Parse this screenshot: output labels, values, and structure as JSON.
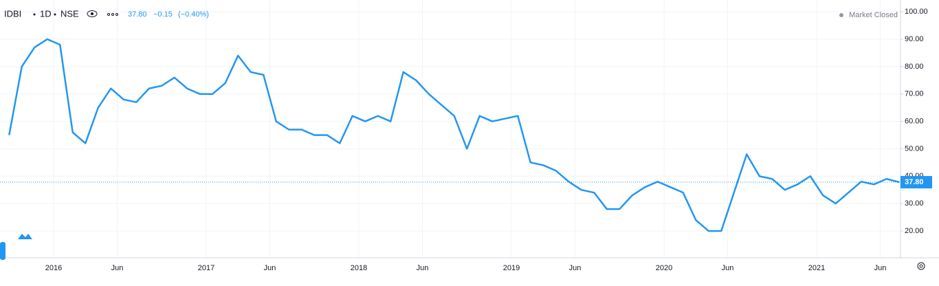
{
  "header": {
    "symbol": "IDBI",
    "interval": "1D",
    "exchange": "NSE",
    "change": "−0.15",
    "change_pct": "(−0.40%)",
    "status": "Market Closed"
  },
  "chart_data": {
    "type": "line",
    "x": [
      "2015-09",
      "2015-10",
      "2015-11",
      "2015-12",
      "2016-01",
      "2016-02",
      "2016-03",
      "2016-04",
      "2016-05",
      "2016-06",
      "2016-07",
      "2016-08",
      "2016-09",
      "2016-10",
      "2016-11",
      "2016-12",
      "2017-01",
      "2017-02",
      "2017-03",
      "2017-04",
      "2017-05",
      "2017-06",
      "2017-07",
      "2017-08",
      "2017-09",
      "2017-10",
      "2017-11",
      "2017-12",
      "2018-01",
      "2018-02",
      "2018-03",
      "2018-04",
      "2018-05",
      "2018-06",
      "2018-07",
      "2018-08",
      "2018-09",
      "2018-10",
      "2018-11",
      "2018-12",
      "2019-01",
      "2019-02",
      "2019-03",
      "2019-04",
      "2019-05",
      "2019-06",
      "2019-07",
      "2019-08",
      "2019-09",
      "2019-10",
      "2019-11",
      "2019-12",
      "2020-01",
      "2020-02",
      "2020-03",
      "2020-04",
      "2020-05",
      "2020-06",
      "2020-07",
      "2020-08",
      "2020-09",
      "2020-10",
      "2020-11",
      "2020-12",
      "2021-01",
      "2021-02",
      "2021-03",
      "2021-04",
      "2021-05",
      "2021-06",
      "2021-07"
    ],
    "series": [
      {
        "name": "IDBI",
        "color": "#2196f3",
        "values": [
          55,
          80,
          87,
          90,
          88,
          56,
          52,
          65,
          72,
          68,
          67,
          72,
          73,
          76,
          72,
          70,
          70,
          74,
          84,
          78,
          77,
          60,
          57,
          57,
          55,
          55,
          52,
          62,
          60,
          62,
          60,
          78,
          75,
          70,
          66,
          62,
          50,
          62,
          60,
          61,
          62,
          45,
          44,
          42,
          38,
          35,
          34,
          28,
          28,
          33,
          36,
          38,
          36,
          34,
          24,
          20,
          20,
          34,
          48,
          40,
          39,
          35,
          37,
          40,
          33,
          30,
          34,
          38,
          37,
          39,
          37.8
        ]
      }
    ],
    "last_price": {
      "value": 37.8,
      "label": "37.80"
    },
    "ylim": [
      10.2,
      102.3
    ],
    "yticks": [
      {
        "value": 20,
        "label": "20.00"
      },
      {
        "value": 30,
        "label": "30.00"
      },
      {
        "value": 40,
        "label": "40.00"
      },
      {
        "value": 50,
        "label": "50.00"
      },
      {
        "value": 60,
        "label": "60.00"
      },
      {
        "value": 70,
        "label": "70.00"
      },
      {
        "value": 80,
        "label": "80.00"
      },
      {
        "value": 90,
        "label": "90.00"
      },
      {
        "value": 100,
        "label": "100.00"
      }
    ],
    "xticks": [
      {
        "value": "2016-01",
        "label": "2016"
      },
      {
        "value": "2016-06",
        "label": "Jun"
      },
      {
        "value": "2017-01",
        "label": "2017"
      },
      {
        "value": "2017-06",
        "label": "Jun"
      },
      {
        "value": "2018-01",
        "label": "2018"
      },
      {
        "value": "2018-06",
        "label": "Jun"
      },
      {
        "value": "2019-01",
        "label": "2019"
      },
      {
        "value": "2019-06",
        "label": "Jun"
      },
      {
        "value": "2020-01",
        "label": "2020"
      },
      {
        "value": "2020-06",
        "label": "Jun"
      },
      {
        "value": "2021-01",
        "label": "2021"
      },
      {
        "value": "2021-06",
        "label": "Jun"
      }
    ],
    "grid": true
  }
}
